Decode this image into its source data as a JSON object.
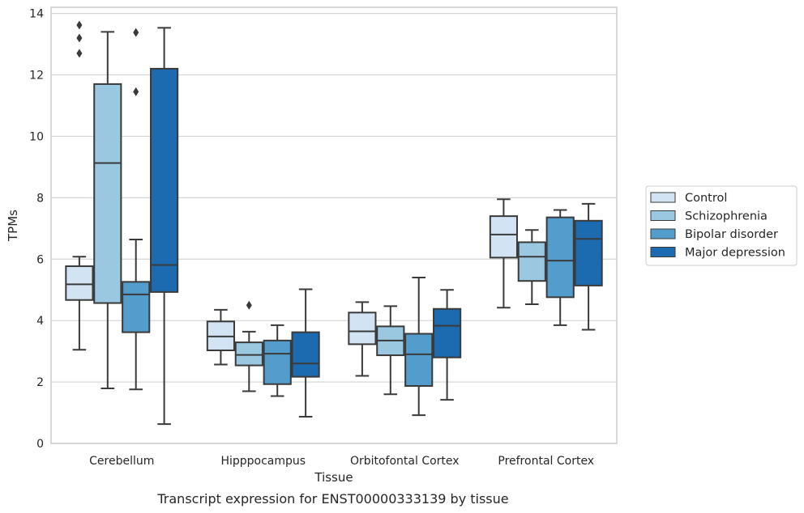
{
  "chart_data": {
    "type": "boxplot",
    "caption": "Transcript expression for ENST00000333139 by tissue",
    "xlabel": "Tissue",
    "ylabel": "TPMs",
    "ylim": [
      0,
      14.2
    ],
    "yticks": [
      0,
      2,
      4,
      6,
      8,
      10,
      12,
      14
    ],
    "grid": true,
    "legend_position": "right",
    "categories": [
      "Cerebellum",
      "Hipppocampus",
      "Orbitofontal Cortex",
      "Prefrontal Cortex"
    ],
    "series": [
      {
        "name": "Control",
        "color": "#d2e3f3",
        "boxes": [
          {
            "whislo": 3.05,
            "q1": 4.67,
            "med": 5.18,
            "q3": 5.77,
            "whishi": 6.08,
            "fliers": [
              12.7,
              13.2,
              13.62
            ]
          },
          {
            "whislo": 2.57,
            "q1": 3.03,
            "med": 3.48,
            "q3": 3.97,
            "whishi": 4.35,
            "fliers": []
          },
          {
            "whislo": 2.2,
            "q1": 3.23,
            "med": 3.65,
            "q3": 4.26,
            "whishi": 4.6,
            "fliers": []
          },
          {
            "whislo": 4.42,
            "q1": 6.05,
            "med": 6.8,
            "q3": 7.4,
            "whishi": 7.95,
            "fliers": []
          }
        ]
      },
      {
        "name": "Schizophrenia",
        "color": "#9ac8e0",
        "boxes": [
          {
            "whislo": 1.79,
            "q1": 4.57,
            "med": 9.13,
            "q3": 11.7,
            "whishi": 13.4,
            "fliers": []
          },
          {
            "whislo": 1.7,
            "q1": 2.54,
            "med": 2.88,
            "q3": 3.29,
            "whishi": 3.64,
            "fliers": [
              4.5
            ]
          },
          {
            "whislo": 1.6,
            "q1": 2.87,
            "med": 3.35,
            "q3": 3.81,
            "whishi": 4.47,
            "fliers": []
          },
          {
            "whislo": 4.53,
            "q1": 5.29,
            "med": 6.08,
            "q3": 6.55,
            "whishi": 6.95,
            "fliers": []
          }
        ]
      },
      {
        "name": "Bipolar disorder",
        "color": "#529dcc",
        "boxes": [
          {
            "whislo": 1.76,
            "q1": 3.62,
            "med": 4.85,
            "q3": 5.26,
            "whishi": 6.64,
            "fliers": [
              11.45,
              13.38
            ]
          },
          {
            "whislo": 1.54,
            "q1": 1.93,
            "med": 2.92,
            "q3": 3.35,
            "whishi": 3.85,
            "fliers": []
          },
          {
            "whislo": 0.92,
            "q1": 1.87,
            "med": 2.9,
            "q3": 3.57,
            "whishi": 5.4,
            "fliers": []
          },
          {
            "whislo": 3.85,
            "q1": 4.76,
            "med": 5.95,
            "q3": 7.36,
            "whishi": 7.6,
            "fliers": []
          }
        ]
      },
      {
        "name": "Major depression",
        "color": "#1c6aaf",
        "boxes": [
          {
            "whislo": 0.63,
            "q1": 4.93,
            "med": 5.81,
            "q3": 12.2,
            "whishi": 13.53,
            "fliers": []
          },
          {
            "whislo": 0.87,
            "q1": 2.17,
            "med": 2.6,
            "q3": 3.62,
            "whishi": 5.02,
            "fliers": []
          },
          {
            "whislo": 1.42,
            "q1": 2.8,
            "med": 3.83,
            "q3": 4.38,
            "whishi": 5.0,
            "fliers": []
          },
          {
            "whislo": 3.7,
            "q1": 5.14,
            "med": 6.66,
            "q3": 7.25,
            "whishi": 7.8,
            "fliers": []
          }
        ]
      }
    ]
  }
}
